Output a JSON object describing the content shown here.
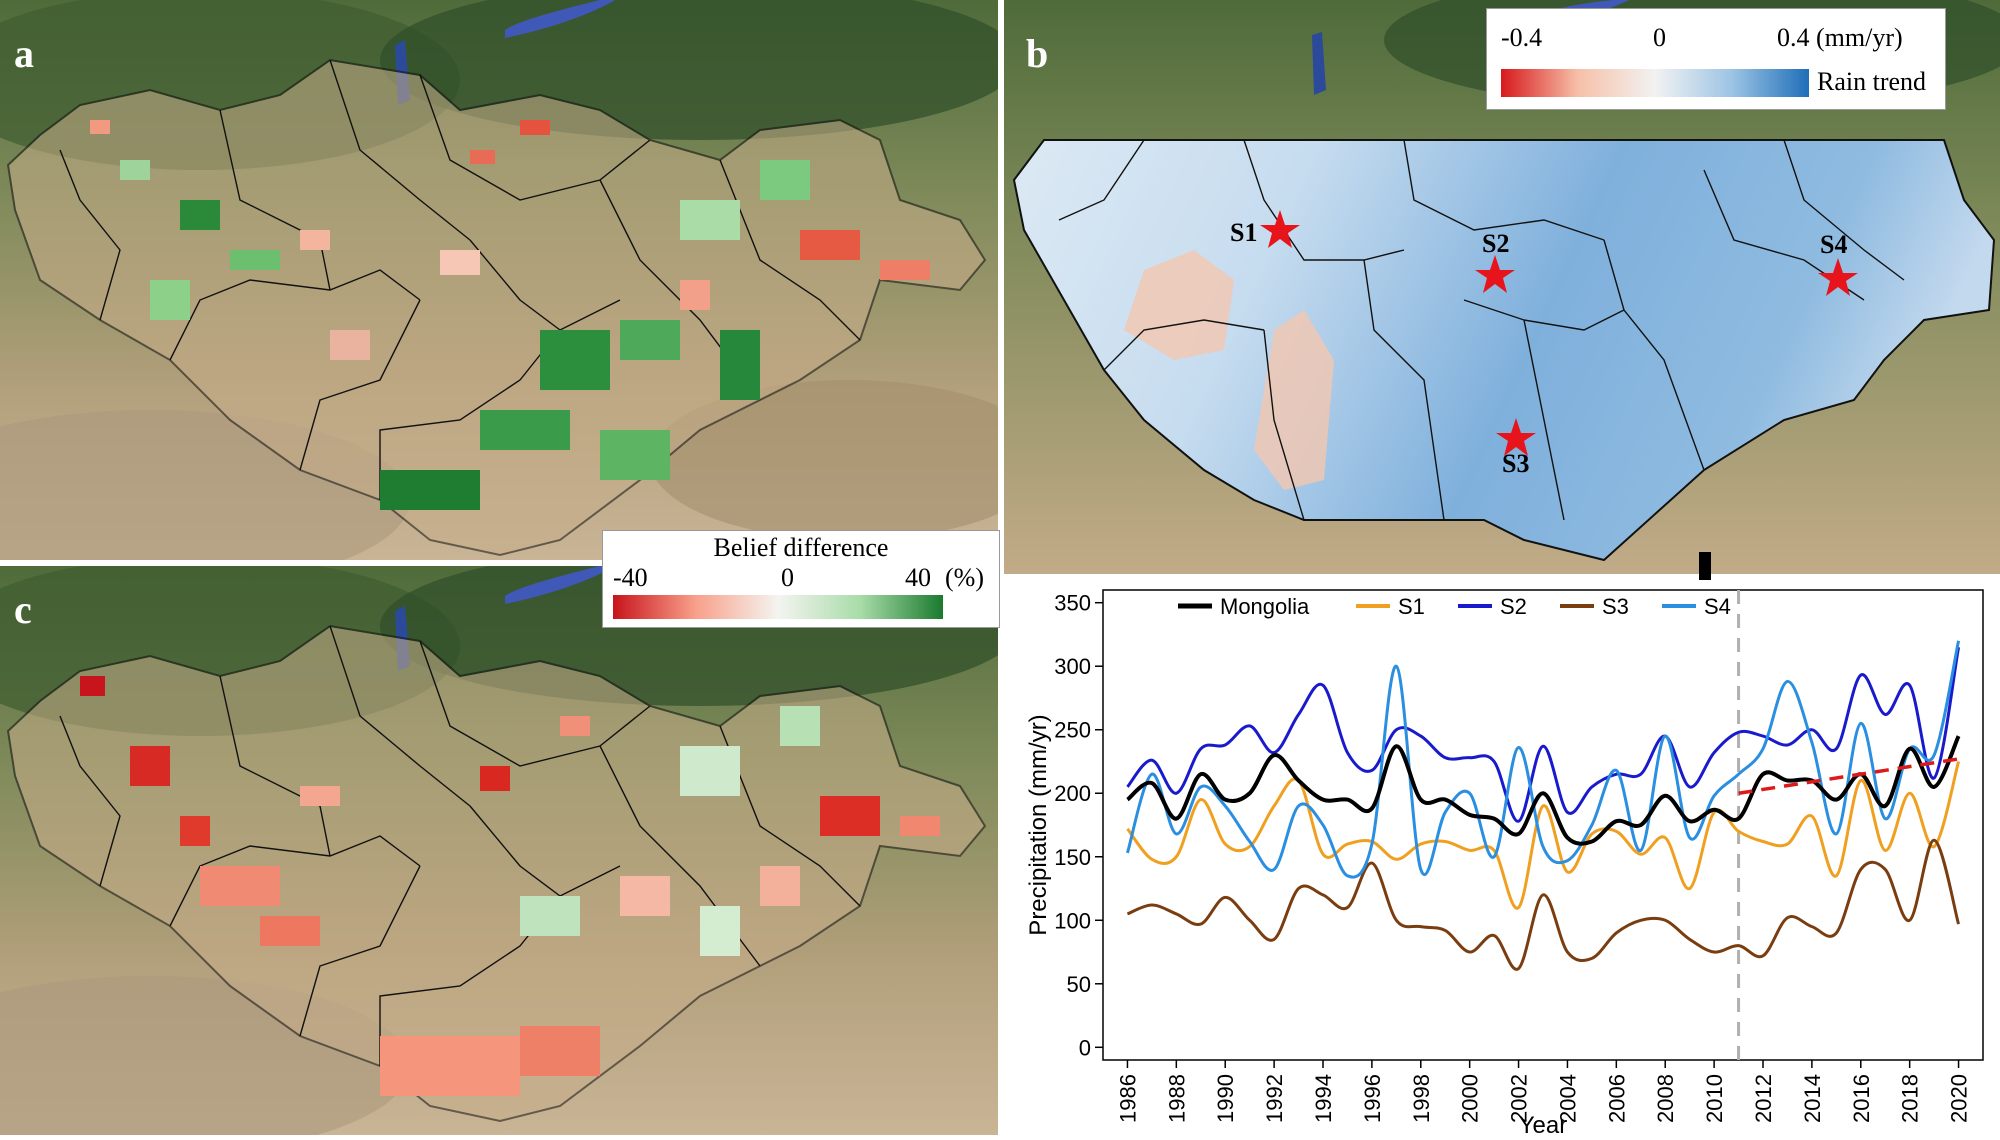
{
  "panels": {
    "a": {
      "label": "a"
    },
    "b": {
      "label": "b"
    },
    "c": {
      "label": "c"
    }
  },
  "belief_legend": {
    "title": "Belief difference",
    "min_label": "-40",
    "mid_label": "0",
    "max_label": "40",
    "unit": "(%)",
    "colors": [
      "#c8141c",
      "#f8a08a",
      "#f4f4f0",
      "#a8dca8",
      "#1a7a2e"
    ]
  },
  "rain_legend": {
    "min_label": "-0.4",
    "mid_label": "0",
    "max_label": "0.4 (mm/yr)",
    "title": "Rain trend",
    "colors": [
      "#d7191c",
      "#f6c0a8",
      "#f2f2f2",
      "#9cc4e4",
      "#1f6eb8"
    ]
  },
  "sites": [
    {
      "name": "S1"
    },
    {
      "name": "S2"
    },
    {
      "name": "S3"
    },
    {
      "name": "S4"
    }
  ],
  "chart_data": {
    "type": "line",
    "xlabel": "Year",
    "ylabel": "Precipitation (mm/yr)",
    "ylim": [
      -10,
      360
    ],
    "yticks": [
      0,
      50,
      100,
      150,
      200,
      250,
      300,
      350
    ],
    "xlim": [
      1985,
      2021
    ],
    "xticks": [
      1986,
      1988,
      1990,
      1992,
      1994,
      1996,
      1998,
      2000,
      2002,
      2004,
      2006,
      2008,
      2010,
      2012,
      2014,
      2016,
      2018,
      2020
    ],
    "x": [
      1986,
      1987,
      1988,
      1989,
      1990,
      1991,
      1992,
      1993,
      1994,
      1995,
      1996,
      1997,
      1998,
      1999,
      2000,
      2001,
      2002,
      2003,
      2004,
      2005,
      2006,
      2007,
      2008,
      2009,
      2010,
      2011,
      2012,
      2013,
      2014,
      2015,
      2016,
      2017,
      2018,
      2019,
      2020
    ],
    "series": [
      {
        "name": "Mongolia",
        "color": "#000000",
        "width": 4,
        "values": [
          195,
          208,
          180,
          215,
          195,
          200,
          230,
          210,
          195,
          195,
          188,
          237,
          195,
          195,
          183,
          180,
          168,
          200,
          165,
          162,
          178,
          175,
          198,
          178,
          187,
          180,
          215,
          210,
          210,
          195,
          215,
          190,
          235,
          205,
          245
        ]
      },
      {
        "name": "S1",
        "color": "#f0a020",
        "width": 3,
        "values": [
          172,
          148,
          150,
          195,
          160,
          158,
          190,
          210,
          152,
          160,
          162,
          148,
          160,
          162,
          155,
          155,
          110,
          190,
          138,
          168,
          170,
          152,
          165,
          125,
          185,
          170,
          162,
          160,
          182,
          135,
          210,
          155,
          200,
          158,
          225
        ]
      },
      {
        "name": "S2",
        "color": "#1a1acd",
        "width": 3,
        "values": [
          205,
          226,
          200,
          235,
          238,
          253,
          232,
          262,
          285,
          232,
          218,
          250,
          245,
          228,
          228,
          225,
          178,
          237,
          185,
          205,
          215,
          215,
          245,
          205,
          232,
          248,
          245,
          238,
          250,
          235,
          293,
          262,
          285,
          212,
          315
        ]
      },
      {
        "name": "S3",
        "color": "#7a3d0f",
        "width": 3,
        "values": [
          105,
          112,
          105,
          97,
          118,
          100,
          85,
          125,
          120,
          110,
          145,
          100,
          95,
          92,
          75,
          88,
          62,
          120,
          75,
          70,
          90,
          100,
          100,
          85,
          75,
          80,
          72,
          102,
          95,
          90,
          140,
          140,
          100,
          163,
          97
        ]
      },
      {
        "name": "S4",
        "color": "#2a8fe0",
        "width": 3,
        "values": [
          153,
          215,
          168,
          205,
          190,
          162,
          140,
          190,
          175,
          135,
          160,
          300,
          140,
          185,
          200,
          150,
          236,
          158,
          147,
          175,
          218,
          155,
          245,
          165,
          198,
          215,
          235,
          288,
          240,
          168,
          255,
          180,
          235,
          230,
          320
        ]
      }
    ],
    "trend": {
      "name": "trend",
      "color": "#dd1a1a",
      "x": [
        2011,
        2020
      ],
      "values": [
        200,
        227
      ]
    },
    "breakpoint_year": 2011
  }
}
